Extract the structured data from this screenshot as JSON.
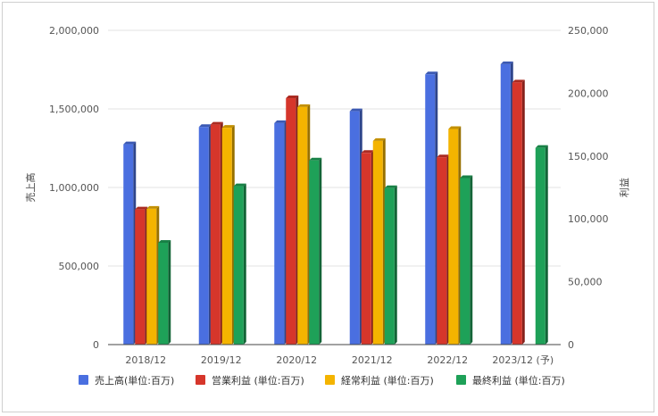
{
  "chart_data": {
    "type": "bar",
    "categories": [
      "2018/12",
      "2019/12",
      "2020/12",
      "2021/12",
      "2022/12",
      "2023/12 (予)"
    ],
    "y_left": {
      "label": "売上高",
      "range": [
        0,
        2000000
      ],
      "ticks": [
        0,
        500000,
        1000000,
        1500000,
        2000000
      ],
      "tick_labels": [
        "0",
        "500,000",
        "1,000,000",
        "1,500,000",
        "2,000,000"
      ]
    },
    "y_right": {
      "label": "利益",
      "range": [
        0,
        250000
      ],
      "ticks": [
        0,
        50000,
        100000,
        150000,
        200000,
        250000
      ],
      "tick_labels": [
        "0",
        "50,000",
        "100,000",
        "150,000",
        "200,000",
        "250,000"
      ]
    },
    "series": [
      {
        "name": "売上高(単位:百万)",
        "axis": "left",
        "color": "#4a6fe0",
        "values": [
          1275000,
          1385000,
          1410000,
          1485000,
          1720000,
          1785000
        ]
      },
      {
        "name": "営業利益 (単位:百万)",
        "axis": "right",
        "color": "#d6362b",
        "values": [
          107500,
          175000,
          196000,
          152500,
          149000,
          208500
        ]
      },
      {
        "name": "経常利益 (単位:百万)",
        "axis": "right",
        "color": "#f4b400",
        "values": [
          108000,
          172500,
          189000,
          162000,
          171500,
          null
        ]
      },
      {
        "name": "最終利益 (単位:百万)",
        "axis": "right",
        "color": "#1ea158",
        "values": [
          81000,
          126000,
          146500,
          124500,
          132500,
          156500
        ]
      }
    ],
    "grid": true,
    "legend_position": "bottom"
  }
}
